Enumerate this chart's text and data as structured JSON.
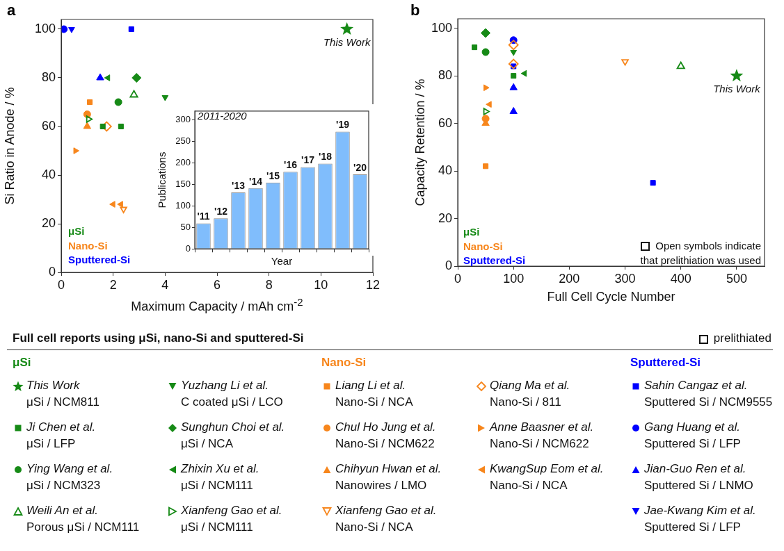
{
  "chart_data": [
    {
      "type": "scatter",
      "title": "a",
      "xlabel": "Maximum Capacity / mAh cm$^{-2}$",
      "ylabel": "Si Ratio in Anode / %",
      "xlim": [
        0,
        12
      ],
      "xticks": [
        0,
        2,
        4,
        6,
        8,
        10,
        12
      ],
      "ylim": [
        0,
        104
      ],
      "yticks": [
        0,
        20,
        40,
        60,
        80,
        100
      ],
      "grid": false,
      "legend": "bottom",
      "legend_title": "Full cell reports using μSi, nano-Si and sputtered-Si",
      "annotations": [
        "μSi",
        "Nano-Si",
        "Sputtered-Si",
        {
          "text": "This Work",
          "x": 11,
          "y": 100
        },
        "prelithiated"
      ],
      "series": [
        {
          "name": "This Work\nμSi / NCM811",
          "color": "#168a16",
          "marker": "star",
          "x": [
            11
          ],
          "values": [
            100
          ]
        },
        {
          "name": "Ji Chen et al.\nμSi / LFP",
          "color": "#168a16",
          "marker": "square",
          "x": [
            1.6,
            2.3
          ],
          "values": [
            60,
            60
          ]
        },
        {
          "name": "Ying Wang et al.\nμSi / NCM323",
          "color": "#168a16",
          "marker": "circle",
          "x": [
            2.2
          ],
          "values": [
            70
          ]
        },
        {
          "name": "Weili An et al.\nPorous μSi / NCM111",
          "color": "#168a16",
          "marker": "triangle-open",
          "x": [
            2.8
          ],
          "values": [
            73
          ]
        },
        {
          "name": "Yuzhang Li et al.\nC coated μSi / LCO",
          "color": "#168a16",
          "marker": "triangle-down",
          "x": [
            4.0
          ],
          "values": [
            72
          ]
        },
        {
          "name": "Sunghun Choi et al.\nμSi / NCA",
          "color": "#168a16",
          "marker": "diamond",
          "x": [
            2.9
          ],
          "values": [
            80
          ]
        },
        {
          "name": "Zhixin Xu et al.\nμSi / NCM111",
          "color": "#168a16",
          "marker": "triangle-left",
          "x": [
            1.8
          ],
          "values": [
            80
          ]
        },
        {
          "name": "Xianfeng Gao et al.\nμSi / NCM111",
          "color": "#168a16",
          "marker": "triangle-right-open",
          "x": [
            1.05
          ],
          "values": [
            63
          ]
        },
        {
          "name": "Liang Li et al.\nNano-Si / NCA",
          "color": "#f7861c",
          "marker": "square",
          "x": [
            1.1
          ],
          "values": [
            70
          ]
        },
        {
          "name": "Chul Ho Jung et al.\nNano-Si / NCM622",
          "color": "#f7861c",
          "marker": "circle",
          "x": [
            1.0
          ],
          "values": [
            65
          ]
        },
        {
          "name": "Chihyun Hwan et al.\nNanowires / LMO",
          "color": "#f7861c",
          "marker": "triangle",
          "x": [
            1.0
          ],
          "values": [
            60
          ]
        },
        {
          "name": "Xianfeng Gao et al.\nNano-Si / NCA",
          "color": "#f7861c",
          "marker": "triangle-down-open",
          "x": [
            2.4
          ],
          "values": [
            26
          ]
        },
        {
          "name": "Qiang Ma et al.\nNano-Si / 811",
          "color": "#f7861c",
          "marker": "diamond-open",
          "x": [
            1.75
          ],
          "values": [
            60
          ]
        },
        {
          "name": "Anne Baasner et al.\nNano-Si / NCM622",
          "color": "#f7861c",
          "marker": "triangle-right",
          "x": [
            0.55
          ],
          "values": [
            50
          ]
        },
        {
          "name": "KwangSup Eom et al.\nNano-Si / NCA",
          "color": "#f7861c",
          "marker": "triangle-left",
          "x": [
            2.0,
            2.3
          ],
          "values": [
            28,
            28
          ]
        },
        {
          "name": "Sahin Cangaz et al.\nSputtered Si / NCM9555",
          "color": "#0000ff",
          "marker": "square",
          "x": [
            2.7
          ],
          "values": [
            100
          ]
        },
        {
          "name": "Gang Huang et al.\nSputtered Si / LFP",
          "color": "#0000ff",
          "marker": "circle",
          "x": [
            0.1
          ],
          "values": [
            100
          ]
        },
        {
          "name": "Jian-Guo Ren et al.\nSputtered Si / LNMO",
          "color": "#0000ff",
          "marker": "triangle",
          "x": [
            1.5
          ],
          "values": [
            80
          ]
        },
        {
          "name": "Jae-Kwang Kim et al.\nSputtered Si / LFP",
          "color": "#0000ff",
          "marker": "triangle-down",
          "x": [
            0.4
          ],
          "values": [
            100
          ]
        }
      ]
    },
    {
      "type": "bar",
      "xlabel": "Year",
      "ylabel": "Publications",
      "categories": [
        "'11",
        "'12",
        "'13",
        "'14",
        "'15",
        "'16",
        "'17",
        "'18",
        "'19",
        "'20"
      ],
      "values": [
        59,
        71,
        131,
        141,
        154,
        179,
        190,
        198,
        272,
        173
      ],
      "color": "#80bdfc",
      "ylim": [
        0,
        320
      ],
      "yticks": [
        0,
        50,
        100,
        150,
        200,
        250,
        300
      ],
      "grid": false,
      "annotations": [
        "2011-2020"
      ]
    },
    {
      "type": "scatter",
      "title": "b",
      "xlabel": "Full Cell Cycle Number",
      "ylabel": "Capacity Retention / %",
      "xlim": [
        0,
        550
      ],
      "xticks": [
        0,
        100,
        200,
        300,
        400,
        500
      ],
      "ylim": [
        0,
        104
      ],
      "yticks": [
        0,
        20,
        40,
        60,
        80,
        100
      ],
      "grid": false,
      "annotations": [
        "μSi",
        "Nano-Si",
        "Sputtered-Si",
        {
          "text": "This Work",
          "x": 500,
          "y": 80
        },
        "Open symbols indicate that prelithiation was used"
      ],
      "series": [
        {
          "color": "#168a16",
          "marker": "star",
          "x": [
            500
          ],
          "values": [
            80
          ]
        },
        {
          "color": "#168a16",
          "marker": "square",
          "x": [
            30,
            100
          ],
          "values": [
            92,
            80
          ]
        },
        {
          "color": "#168a16",
          "marker": "circle",
          "x": [
            50
          ],
          "values": [
            90
          ]
        },
        {
          "color": "#168a16",
          "marker": "triangle-open",
          "x": [
            400
          ],
          "values": [
            84
          ]
        },
        {
          "color": "#168a16",
          "marker": "triangle-down",
          "x": [
            100
          ],
          "values": [
            90
          ]
        },
        {
          "color": "#168a16",
          "marker": "diamond",
          "x": [
            50
          ],
          "values": [
            98
          ]
        },
        {
          "color": "#168a16",
          "marker": "triangle-left",
          "x": [
            120
          ],
          "values": [
            81
          ]
        },
        {
          "color": "#168a16",
          "marker": "triangle-right-open",
          "x": [
            50
          ],
          "values": [
            65
          ]
        },
        {
          "color": "#f7861c",
          "marker": "square",
          "x": [
            50
          ],
          "values": [
            42
          ]
        },
        {
          "color": "#f7861c",
          "marker": "circle",
          "x": [
            50
          ],
          "values": [
            62
          ]
        },
        {
          "color": "#f7861c",
          "marker": "triangle",
          "x": [
            50
          ],
          "values": [
            60
          ]
        },
        {
          "color": "#f7861c",
          "marker": "triangle-down-open",
          "x": [
            300
          ],
          "values": [
            86
          ]
        },
        {
          "color": "#f7861c",
          "marker": "diamond-open",
          "x": [
            100,
            100
          ],
          "values": [
            93,
            85
          ]
        },
        {
          "color": "#f7861c",
          "marker": "triangle-right",
          "x": [
            50
          ],
          "values": [
            75
          ]
        },
        {
          "color": "#f7861c",
          "marker": "triangle-left",
          "x": [
            57
          ],
          "values": [
            68
          ]
        },
        {
          "color": "#0000ff",
          "marker": "square",
          "x": [
            100,
            350
          ],
          "values": [
            84,
            35
          ]
        },
        {
          "color": "#0000ff",
          "marker": "circle",
          "x": [
            100
          ],
          "values": [
            95
          ]
        },
        {
          "color": "#0000ff",
          "marker": "triangle",
          "x": [
            100,
            100
          ],
          "values": [
            75,
            65
          ]
        }
      ]
    }
  ]
}
